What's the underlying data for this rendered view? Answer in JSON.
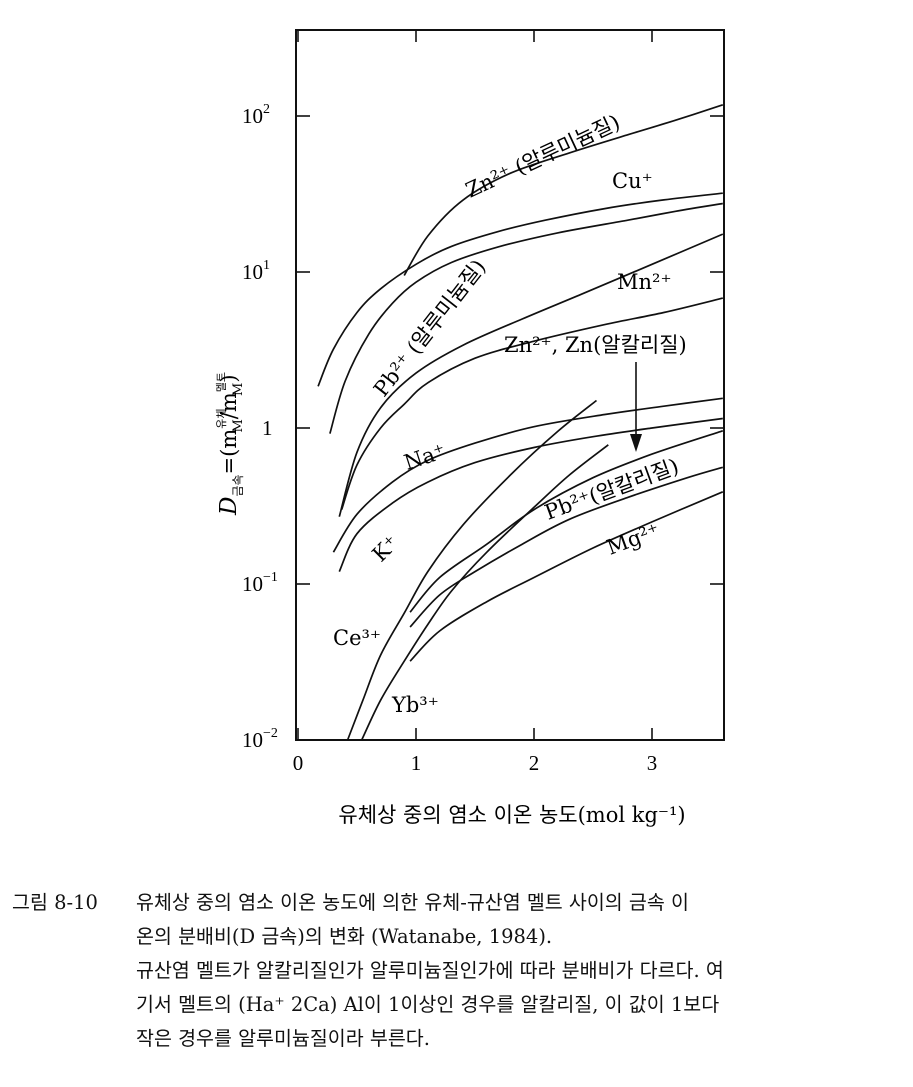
{
  "chart_data": {
    "type": "line",
    "xlabel": "유체상 중의 염소 이온 농도(mol kg⁻¹)",
    "ylabel_main": "D",
    "ylabel_sub": "금속",
    "ylabel_rest": "=(m",
    "ylabel_sup1": "유체",
    "ylabel_sub1": "M",
    "ylabel_mid": "/m",
    "ylabel_sup2": "멜트",
    "ylabel_sub2": "M",
    "ylabel_end": ")",
    "xlim": [
      0,
      3.65
    ],
    "ylim": [
      0.01,
      400
    ],
    "yscale": "log",
    "xticks": [
      {
        "value": 0,
        "label": "0"
      },
      {
        "value": 1,
        "label": "1"
      },
      {
        "value": 2,
        "label": "2"
      },
      {
        "value": 3,
        "label": "3"
      }
    ],
    "yticks": [
      {
        "value": 0.01,
        "base": "10",
        "exp": "−2"
      },
      {
        "value": 0.1,
        "base": "10",
        "exp": "−1"
      },
      {
        "value": 1,
        "base": "1",
        "exp": ""
      },
      {
        "value": 10,
        "base": "10",
        "exp": "1"
      },
      {
        "value": 100,
        "base": "10",
        "exp": "2"
      }
    ],
    "series": [
      {
        "id": "zn-al",
        "x": [
          0.9,
          1.1,
          1.4,
          1.8,
          2.3,
          2.8,
          3.2,
          3.6
        ],
        "y": [
          9.5,
          17,
          29,
          43,
          58,
          76,
          94,
          118
        ]
      },
      {
        "id": "cu",
        "x": [
          0.17,
          0.3,
          0.5,
          0.7,
          1.0,
          1.3,
          1.7,
          2.1,
          2.6,
          3.1,
          3.6
        ],
        "y": [
          1.85,
          3.2,
          5.5,
          7.8,
          11.2,
          14.6,
          18.2,
          21.5,
          25.5,
          29,
          32
        ]
      },
      {
        "id": "pb-al",
        "x": [
          0.27,
          0.4,
          0.6,
          0.8,
          1.0,
          1.3,
          1.7,
          2.2,
          2.8,
          3.2,
          3.6
        ],
        "y": [
          0.92,
          2.0,
          4.0,
          6.3,
          8.6,
          11.5,
          14.5,
          17.8,
          21.5,
          24.5,
          27.5
        ]
      },
      {
        "id": "mn",
        "x": [
          0.35,
          0.5,
          0.7,
          1.0,
          1.4,
          1.9,
          2.4,
          3.0,
          3.6
        ],
        "y": [
          0.27,
          0.7,
          1.35,
          2.25,
          3.4,
          5.0,
          7.2,
          11.2,
          17.5
        ]
      },
      {
        "id": "zn-alk-a",
        "x": [
          0.37,
          0.5,
          0.7,
          0.9,
          1.1,
          1.5,
          2.0,
          2.6,
          3.1,
          3.6
        ],
        "y": [
          0.3,
          0.58,
          1.0,
          1.42,
          1.95,
          2.8,
          3.6,
          4.6,
          5.5,
          6.8
        ]
      },
      {
        "id": "na",
        "x": [
          0.3,
          0.5,
          0.8,
          1.1,
          1.5,
          2.0,
          2.6,
          3.1,
          3.6
        ],
        "y": [
          0.16,
          0.28,
          0.45,
          0.62,
          0.8,
          1.02,
          1.22,
          1.38,
          1.55
        ]
      },
      {
        "id": "k",
        "x": [
          0.35,
          0.5,
          0.8,
          1.1,
          1.5,
          2.0,
          2.5,
          3.0,
          3.6
        ],
        "y": [
          0.12,
          0.21,
          0.33,
          0.45,
          0.6,
          0.75,
          0.88,
          1.0,
          1.15
        ]
      },
      {
        "id": "ce",
        "x": [
          0.42,
          0.55,
          0.7,
          0.9,
          1.1,
          1.4,
          1.8,
          2.2,
          2.53
        ],
        "y": [
          0.01,
          0.018,
          0.035,
          0.065,
          0.12,
          0.24,
          0.5,
          0.95,
          1.5
        ]
      },
      {
        "id": "yb",
        "x": [
          0.54,
          0.7,
          0.9,
          1.1,
          1.3,
          1.6,
          2.0,
          2.3,
          2.63
        ],
        "y": [
          0.01,
          0.018,
          0.032,
          0.055,
          0.09,
          0.16,
          0.31,
          0.5,
          0.78
        ]
      },
      {
        "id": "zn-alk-b",
        "x": [
          0.95,
          1.2,
          1.6,
          2.0,
          2.5,
          3.0,
          3.6
        ],
        "y": [
          0.066,
          0.11,
          0.18,
          0.3,
          0.48,
          0.68,
          0.96
        ]
      },
      {
        "id": "pb-alk",
        "x": [
          0.95,
          1.2,
          1.5,
          1.9,
          2.3,
          2.8,
          3.3,
          3.6
        ],
        "y": [
          0.053,
          0.085,
          0.12,
          0.18,
          0.26,
          0.36,
          0.48,
          0.56
        ]
      },
      {
        "id": "mg",
        "x": [
          0.95,
          1.2,
          1.6,
          2.0,
          2.5,
          3.0,
          3.6
        ],
        "y": [
          0.032,
          0.05,
          0.077,
          0.11,
          0.17,
          0.25,
          0.39
        ]
      }
    ],
    "annotations": [
      {
        "id": "zn-al",
        "text": "Zn²⁺ (알루미늄질)"
      },
      {
        "id": "cu",
        "text": "Cu⁺"
      },
      {
        "id": "pb-al",
        "text": "Pb²⁺ (알루미늄질)"
      },
      {
        "id": "mn",
        "text": "Mn²⁺"
      },
      {
        "id": "zn-alk",
        "text": "Zn²⁺, Zn(알칼리질)"
      },
      {
        "id": "na",
        "text": "Na⁺"
      },
      {
        "id": "k",
        "text": "K⁺"
      },
      {
        "id": "pb-alk",
        "text": "Pb²⁺(알칼리질)"
      },
      {
        "id": "mg",
        "text": "Mg²⁺"
      },
      {
        "id": "ce",
        "text": "Ce³⁺"
      },
      {
        "id": "yb",
        "text": "Yb³⁺"
      }
    ]
  },
  "caption": {
    "number": "그림 8-10",
    "lines": [
      "유체상 중의 염소 이온 농도에 의한 유체-규산염 멜트 사이의 금속 이",
      "온의 분배비(D 금속)의 변화 (Watanabe, 1984).",
      "규산염 멜트가 알칼리질인가 알루미늄질인가에 따라 분배비가 다르다. 여",
      "기서 멜트의 (Ha⁺ 2Ca) Al이 1이상인 경우를 알칼리질, 이 값이 1보다",
      "작은 경우를 알루미늄질이라 부른다."
    ]
  }
}
